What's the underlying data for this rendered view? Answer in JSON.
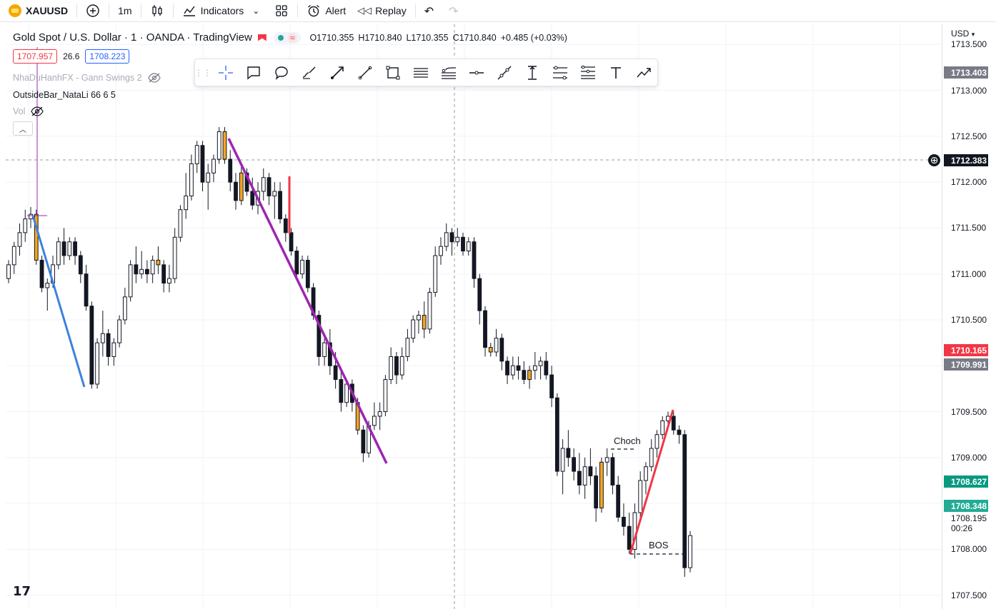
{
  "topbar": {
    "symbol": "XAUUSD",
    "interval": "1m",
    "indicators": "Indicators",
    "alert": "Alert",
    "replay": "Replay"
  },
  "legend": {
    "title": "Gold Spot / U.S. Dollar · 1 · OANDA · TradingView",
    "open": "O1710.355",
    "high": "H1710.840",
    "low": "L1710.355",
    "close": "C1710.840",
    "change": "+0.485 (+0.03%)"
  },
  "quote": {
    "bid": "1707.957",
    "spread": "26.6",
    "ask": "1708.223"
  },
  "indicators": [
    {
      "name": "NhaDuHanhFX - Gann Swings 2"
    },
    {
      "name": "OutsideBar_NataLi 66 6 5"
    },
    {
      "name": "Vol"
    }
  ],
  "annotations": {
    "choch": "Choch",
    "bos": "BOS"
  },
  "price_axis": {
    "currency": "USD",
    "ticks": [
      "1713.500",
      "1713.000",
      "1712.500",
      "1712.000",
      "1711.500",
      "1711.000",
      "1710.500",
      "1710.000",
      "1709.500",
      "1709.000",
      "1708.500",
      "1708.000",
      "1707.500"
    ],
    "labels": {
      "gray_top": "1713.403",
      "crosshair": "1712.383",
      "red": "1710.165",
      "gray_mid": "1709.991",
      "green": "1708.627",
      "teal": "1708.348",
      "last": "1708.195",
      "countdown": "00:26"
    },
    "colors": {
      "red": "#f23645",
      "green": "#089981",
      "gray": "#787b86",
      "dark": "#131722"
    }
  },
  "chart_data": {
    "type": "candlestick",
    "title": "Gold Spot / U.S. Dollar · 1 · OANDA · TradingView",
    "ylim": [
      1707.35,
      1713.72
    ],
    "candles": [
      [
        1710.95,
        1711.15,
        1710.9,
        1711.1
      ],
      [
        1711.1,
        1711.35,
        1711.0,
        1711.3
      ],
      [
        1711.3,
        1711.55,
        1711.2,
        1711.45
      ],
      [
        1711.45,
        1711.7,
        1711.35,
        1711.6
      ],
      [
        1711.6,
        1711.73,
        1711.5,
        1711.65
      ],
      [
        1711.65,
        1711.7,
        1711.1,
        1711.15
      ],
      [
        1711.15,
        1711.2,
        1710.8,
        1710.85
      ],
      [
        1710.85,
        1710.95,
        1710.6,
        1710.9
      ],
      [
        1710.9,
        1711.2,
        1710.85,
        1711.1
      ],
      [
        1711.1,
        1711.4,
        1711.05,
        1711.35
      ],
      [
        1711.35,
        1711.5,
        1711.1,
        1711.2
      ],
      [
        1711.2,
        1711.4,
        1711.15,
        1711.35
      ],
      [
        1711.35,
        1711.4,
        1711.1,
        1711.2
      ],
      [
        1711.2,
        1711.25,
        1710.9,
        1711.0
      ],
      [
        1711.0,
        1711.1,
        1710.6,
        1710.65
      ],
      [
        1710.65,
        1710.7,
        1709.75,
        1709.8
      ],
      [
        1709.8,
        1710.3,
        1709.75,
        1710.25
      ],
      [
        1710.25,
        1710.6,
        1710.1,
        1710.35
      ],
      [
        1710.35,
        1710.4,
        1710.0,
        1710.1
      ],
      [
        1710.1,
        1710.3,
        1710.0,
        1710.25
      ],
      [
        1710.25,
        1710.55,
        1710.2,
        1710.5
      ],
      [
        1710.5,
        1710.85,
        1710.45,
        1710.75
      ],
      [
        1710.75,
        1711.15,
        1710.7,
        1711.1
      ],
      [
        1711.1,
        1711.3,
        1710.9,
        1711.0
      ],
      [
        1711.0,
        1711.25,
        1710.95,
        1711.05
      ],
      [
        1711.05,
        1711.15,
        1710.9,
        1711.0
      ],
      [
        1711.0,
        1711.2,
        1710.9,
        1711.15
      ],
      [
        1711.15,
        1711.3,
        1711.0,
        1711.1
      ],
      [
        1711.1,
        1711.15,
        1710.8,
        1710.9
      ],
      [
        1710.9,
        1711.1,
        1710.8,
        1710.95
      ],
      [
        1710.95,
        1711.5,
        1710.9,
        1711.4
      ],
      [
        1711.4,
        1711.75,
        1711.35,
        1711.7
      ],
      [
        1711.7,
        1712.1,
        1711.6,
        1711.85
      ],
      [
        1711.85,
        1712.3,
        1711.8,
        1712.2
      ],
      [
        1712.2,
        1712.45,
        1712.1,
        1712.4
      ],
      [
        1712.4,
        1712.45,
        1711.9,
        1712.0
      ],
      [
        1712.0,
        1712.2,
        1711.7,
        1712.1
      ],
      [
        1712.1,
        1712.3,
        1712.0,
        1712.25
      ],
      [
        1712.25,
        1712.6,
        1712.2,
        1712.55
      ],
      [
        1712.55,
        1712.6,
        1712.2,
        1712.25
      ],
      [
        1712.25,
        1712.35,
        1711.9,
        1712.0
      ],
      [
        1712.0,
        1712.1,
        1711.7,
        1711.8
      ],
      [
        1711.8,
        1712.2,
        1711.75,
        1712.1
      ],
      [
        1712.1,
        1712.15,
        1711.85,
        1711.9
      ],
      [
        1711.9,
        1712.05,
        1711.7,
        1711.75
      ],
      [
        1711.75,
        1712.0,
        1711.65,
        1711.9
      ],
      [
        1711.9,
        1712.15,
        1711.8,
        1712.05
      ],
      [
        1712.05,
        1712.1,
        1711.75,
        1711.85
      ],
      [
        1711.85,
        1712.0,
        1711.6,
        1711.9
      ],
      [
        1711.9,
        1712.0,
        1711.55,
        1711.6
      ],
      [
        1711.6,
        1711.65,
        1711.35,
        1711.45
      ],
      [
        1711.45,
        1711.5,
        1711.2,
        1711.25
      ],
      [
        1711.25,
        1711.3,
        1710.95,
        1711.0
      ],
      [
        1711.0,
        1711.2,
        1710.95,
        1711.15
      ],
      [
        1711.15,
        1711.2,
        1710.8,
        1710.85
      ],
      [
        1710.85,
        1710.9,
        1710.5,
        1710.55
      ],
      [
        1710.55,
        1710.6,
        1710.0,
        1710.1
      ],
      [
        1710.1,
        1710.3,
        1710.0,
        1710.25
      ],
      [
        1710.25,
        1710.4,
        1709.9,
        1710.0
      ],
      [
        1710.0,
        1710.15,
        1709.75,
        1709.85
      ],
      [
        1709.85,
        1709.95,
        1709.5,
        1709.6
      ],
      [
        1709.6,
        1709.85,
        1709.55,
        1709.8
      ],
      [
        1709.8,
        1709.85,
        1709.5,
        1709.6
      ],
      [
        1709.6,
        1709.65,
        1709.25,
        1709.3
      ],
      [
        1709.3,
        1709.35,
        1708.95,
        1709.05
      ],
      [
        1709.05,
        1709.4,
        1709.0,
        1709.35
      ],
      [
        1709.35,
        1709.6,
        1709.3,
        1709.45
      ],
      [
        1709.45,
        1709.6,
        1709.3,
        1709.5
      ],
      [
        1709.5,
        1709.9,
        1709.45,
        1709.85
      ],
      [
        1709.85,
        1710.2,
        1709.8,
        1710.1
      ],
      [
        1710.1,
        1710.15,
        1709.8,
        1709.9
      ],
      [
        1709.9,
        1710.2,
        1709.85,
        1710.1
      ],
      [
        1710.1,
        1710.4,
        1710.05,
        1710.3
      ],
      [
        1710.3,
        1710.55,
        1710.25,
        1710.5
      ],
      [
        1710.5,
        1710.6,
        1710.35,
        1710.55
      ],
      [
        1710.55,
        1710.7,
        1710.3,
        1710.4
      ],
      [
        1710.4,
        1710.85,
        1710.35,
        1710.8
      ],
      [
        1710.8,
        1711.3,
        1710.75,
        1711.2
      ],
      [
        1711.2,
        1711.4,
        1711.1,
        1711.3
      ],
      [
        1711.3,
        1711.55,
        1711.25,
        1711.45
      ],
      [
        1711.45,
        1711.5,
        1711.2,
        1711.35
      ],
      [
        1711.35,
        1711.5,
        1711.3,
        1711.4
      ],
      [
        1711.4,
        1711.45,
        1711.2,
        1711.25
      ],
      [
        1711.25,
        1711.4,
        1711.2,
        1711.35
      ],
      [
        1711.35,
        1711.4,
        1710.85,
        1710.95
      ],
      [
        1710.95,
        1711.0,
        1710.45,
        1710.6
      ],
      [
        1710.6,
        1710.65,
        1710.1,
        1710.2
      ],
      [
        1710.2,
        1710.25,
        1710.1,
        1710.15
      ],
      [
        1710.15,
        1710.4,
        1710.1,
        1710.3
      ],
      [
        1710.3,
        1710.35,
        1709.95,
        1710.05
      ],
      [
        1710.05,
        1710.1,
        1709.8,
        1709.9
      ],
      [
        1709.9,
        1710.1,
        1709.85,
        1710.0
      ],
      [
        1710.0,
        1710.1,
        1709.85,
        1709.95
      ],
      [
        1709.95,
        1710.05,
        1709.8,
        1709.85
      ],
      [
        1709.85,
        1710.0,
        1709.75,
        1709.95
      ],
      [
        1709.95,
        1710.15,
        1709.85,
        1710.0
      ],
      [
        1710.0,
        1710.1,
        1709.85,
        1710.05
      ],
      [
        1710.05,
        1710.15,
        1709.85,
        1709.9
      ],
      [
        1709.9,
        1710.0,
        1709.55,
        1709.65
      ],
      [
        1709.65,
        1709.7,
        1708.8,
        1708.85
      ],
      [
        1708.85,
        1709.2,
        1708.6,
        1709.1
      ],
      [
        1709.1,
        1709.3,
        1708.9,
        1709.0
      ],
      [
        1709.0,
        1709.1,
        1708.75,
        1708.85
      ],
      [
        1708.85,
        1709.05,
        1708.6,
        1708.7
      ],
      [
        1708.7,
        1709.0,
        1708.55,
        1708.9
      ],
      [
        1708.9,
        1709.1,
        1708.7,
        1708.8
      ],
      [
        1708.8,
        1708.9,
        1708.3,
        1708.45
      ],
      [
        1708.45,
        1709.0,
        1708.4,
        1708.95
      ],
      [
        1708.95,
        1709.1,
        1708.8,
        1709.0
      ],
      [
        1709.0,
        1709.05,
        1708.6,
        1708.7
      ],
      [
        1708.7,
        1708.8,
        1708.3,
        1708.35
      ],
      [
        1708.35,
        1708.5,
        1708.15,
        1708.25
      ],
      [
        1708.25,
        1708.4,
        1707.95,
        1708.0
      ],
      [
        1708.0,
        1708.5,
        1707.9,
        1708.4
      ],
      [
        1708.4,
        1708.85,
        1708.3,
        1708.75
      ],
      [
        1708.75,
        1708.95,
        1708.6,
        1708.9
      ],
      [
        1708.9,
        1709.2,
        1708.85,
        1709.1
      ],
      [
        1709.1,
        1709.3,
        1709.0,
        1709.25
      ],
      [
        1709.25,
        1709.45,
        1709.2,
        1709.4
      ],
      [
        1709.4,
        1709.5,
        1709.3,
        1709.45
      ],
      [
        1709.45,
        1709.5,
        1709.25,
        1709.3
      ],
      [
        1709.3,
        1709.35,
        1709.15,
        1709.25
      ],
      [
        1709.25,
        1709.3,
        1707.7,
        1707.8
      ],
      [
        1707.8,
        1708.2,
        1707.75,
        1708.15
      ]
    ]
  }
}
